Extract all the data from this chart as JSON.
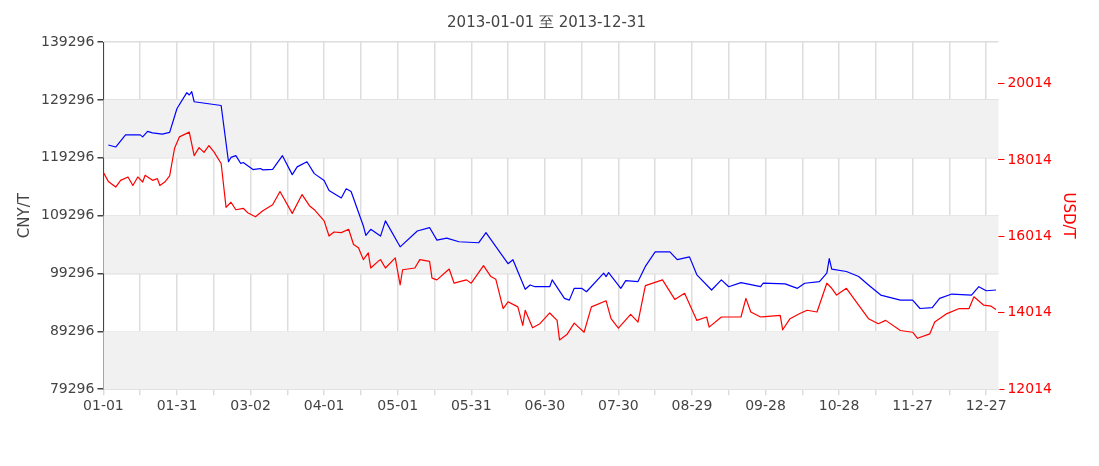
{
  "chart_data": {
    "type": "line",
    "title": "2013-01-01 至 2013-12-31",
    "ylabel": "CNY/T",
    "y2label": "USD/T",
    "xlim": [
      "2013-01-01",
      "2014-01-01"
    ],
    "xticks": [
      {
        "value": "2013-01-01",
        "label": "01-01"
      },
      {
        "value": "2013-01-16",
        "label": null
      },
      {
        "value": "2013-01-31",
        "label": "01-31"
      },
      {
        "value": "2013-02-15",
        "label": null
      },
      {
        "value": "2013-03-02",
        "label": "03-02"
      },
      {
        "value": "2013-03-17",
        "label": null
      },
      {
        "value": "2013-04-01",
        "label": "04-01"
      },
      {
        "value": "2013-04-16",
        "label": null
      },
      {
        "value": "2013-05-01",
        "label": "05-01"
      },
      {
        "value": "2013-05-16",
        "label": null
      },
      {
        "value": "2013-05-31",
        "label": "05-31"
      },
      {
        "value": "2013-06-15",
        "label": null
      },
      {
        "value": "2013-06-30",
        "label": "06-30"
      },
      {
        "value": "2013-07-15",
        "label": null
      },
      {
        "value": "2013-07-30",
        "label": "07-30"
      },
      {
        "value": "2013-08-14",
        "label": null
      },
      {
        "value": "2013-08-29",
        "label": "08-29"
      },
      {
        "value": "2013-09-13",
        "label": null
      },
      {
        "value": "2013-09-28",
        "label": "09-28"
      },
      {
        "value": "2013-10-13",
        "label": null
      },
      {
        "value": "2013-10-28",
        "label": "10-28"
      },
      {
        "value": "2013-11-12",
        "label": null
      },
      {
        "value": "2013-11-27",
        "label": "11-27"
      },
      {
        "value": "2013-12-12",
        "label": null
      },
      {
        "value": "2013-12-27",
        "label": "12-27"
      }
    ],
    "ylim": [
      79296,
      139296
    ],
    "yticks": [
      79296,
      89296,
      99296,
      109296,
      119296,
      129296,
      139296
    ],
    "y2lim": [
      12014,
      21100
    ],
    "y2ticks": [
      12014,
      14014,
      16014,
      18014,
      20014
    ],
    "grid": true,
    "legend": false,
    "marker": "none",
    "line_style": "solid",
    "series": [
      {
        "color": "#0000ff",
        "x": [
          "2013-01-03",
          "2013-01-06",
          "2013-01-10",
          "2013-01-16",
          "2013-01-17",
          "2013-01-19",
          "2013-01-21",
          "2013-01-25",
          "2013-01-28",
          "2013-01-31",
          "2013-02-04",
          "2013-02-05",
          "2013-02-06",
          "2013-02-07",
          "2013-02-18",
          "2013-02-21",
          "2013-02-22",
          "2013-02-24",
          "2013-02-26",
          "2013-02-27",
          "2013-03-03",
          "2013-03-06",
          "2013-03-07",
          "2013-03-11",
          "2013-03-15",
          "2013-03-19",
          "2013-03-21",
          "2013-03-25",
          "2013-03-28",
          "2013-04-01",
          "2013-04-03",
          "2013-04-08",
          "2013-04-10",
          "2013-04-12",
          "2013-04-17",
          "2013-04-18",
          "2013-04-20",
          "2013-04-24",
          "2013-04-26",
          "2013-05-02",
          "2013-05-09",
          "2013-05-14",
          "2013-05-17",
          "2013-05-21",
          "2013-05-26",
          "2013-06-03",
          "2013-06-06",
          "2013-06-15",
          "2013-06-17",
          "2013-06-22",
          "2013-06-24",
          "2013-06-26",
          "2013-07-02",
          "2013-07-03",
          "2013-07-08",
          "2013-07-10",
          "2013-07-12",
          "2013-07-15",
          "2013-07-17",
          "2013-07-24",
          "2013-07-25",
          "2013-07-26",
          "2013-07-31",
          "2013-08-02",
          "2013-08-07",
          "2013-08-10",
          "2013-08-14",
          "2013-08-20",
          "2013-08-23",
          "2013-08-28",
          "2013-08-31",
          "2013-09-06",
          "2013-09-10",
          "2013-09-13",
          "2013-09-18",
          "2013-09-26",
          "2013-09-27",
          "2013-10-06",
          "2013-10-11",
          "2013-10-14",
          "2013-10-20",
          "2013-10-23",
          "2013-10-24",
          "2013-10-25",
          "2013-10-31",
          "2013-11-05",
          "2013-11-09",
          "2013-11-14",
          "2013-11-22",
          "2013-11-27",
          "2013-11-30",
          "2013-12-05",
          "2013-12-08",
          "2013-12-13",
          "2013-12-21",
          "2013-12-24",
          "2013-12-27",
          "2013-12-31"
        ],
        "values": [
          121500,
          121150,
          123250,
          123250,
          122900,
          123840,
          123600,
          123370,
          123670,
          127800,
          130540,
          130140,
          130720,
          128970,
          128320,
          118600,
          119350,
          119650,
          118300,
          118470,
          117250,
          117420,
          117200,
          117300,
          119650,
          116380,
          117720,
          118600,
          116550,
          115380,
          113630,
          112350,
          113930,
          113450,
          107510,
          105880,
          106930,
          105760,
          108380,
          103900,
          106630,
          107230,
          105060,
          105410,
          104780,
          104600,
          106350,
          100980,
          101680,
          96560,
          97310,
          97010,
          97010,
          98190,
          94990,
          94690,
          96730,
          96730,
          96140,
          99360,
          98760,
          99460,
          96730,
          98060,
          97890,
          100510,
          103030,
          103030,
          101680,
          102160,
          99060,
          96440,
          98190,
          97010,
          97710,
          97010,
          97610,
          97490,
          96730,
          97610,
          97890,
          99360,
          101860,
          100060,
          99640,
          98760,
          97310,
          95560,
          94690,
          94690,
          93240,
          93410,
          94990,
          95740,
          95560,
          97010,
          96310,
          96440
        ]
      },
      {
        "color": "#ff0000",
        "axis": "y2",
        "x": [
          "2013-01-01",
          "2013-01-03",
          "2013-01-06",
          "2013-01-08",
          "2013-01-11",
          "2013-01-13",
          "2013-01-15",
          "2013-01-17",
          "2013-01-18",
          "2013-01-21",
          "2013-01-23",
          "2013-01-24",
          "2013-01-26",
          "2013-01-28",
          "2013-01-30",
          "2013-02-01",
          "2013-02-05",
          "2013-02-07",
          "2013-02-09",
          "2013-02-11",
          "2013-02-13",
          "2013-02-15",
          "2013-02-18",
          "2013-02-20",
          "2013-02-22",
          "2013-02-24",
          "2013-02-27",
          "2013-03-01",
          "2013-03-04",
          "2013-03-07",
          "2013-03-11",
          "2013-03-14",
          "2013-03-19",
          "2013-03-23",
          "2013-03-26",
          "2013-03-28",
          "2013-04-01",
          "2013-04-03",
          "2013-04-05",
          "2013-04-08",
          "2013-04-11",
          "2013-04-13",
          "2013-04-15",
          "2013-04-17",
          "2013-04-19",
          "2013-04-20",
          "2013-04-23",
          "2013-04-24",
          "2013-04-26",
          "2013-04-30",
          "2013-05-02",
          "2013-05-03",
          "2013-05-08",
          "2013-05-10",
          "2013-05-14",
          "2013-05-15",
          "2013-05-17",
          "2013-05-22",
          "2013-05-24",
          "2013-05-29",
          "2013-05-31",
          "2013-06-05",
          "2013-06-08",
          "2013-06-10",
          "2013-06-13",
          "2013-06-15",
          "2013-06-19",
          "2013-06-21",
          "2013-06-22",
          "2013-06-25",
          "2013-06-28",
          "2013-07-02",
          "2013-07-05",
          "2013-07-06",
          "2013-07-09",
          "2013-07-12",
          "2013-07-16",
          "2013-07-19",
          "2013-07-25",
          "2013-07-27",
          "2013-07-30",
          "2013-08-04",
          "2013-08-07",
          "2013-08-10",
          "2013-08-17",
          "2013-08-22",
          "2013-08-26",
          "2013-08-31",
          "2013-09-04",
          "2013-09-05",
          "2013-09-10",
          "2013-09-18",
          "2013-09-20",
          "2013-09-22",
          "2013-09-26",
          "2013-10-04",
          "2013-10-05",
          "2013-10-08",
          "2013-10-12",
          "2013-10-15",
          "2013-10-19",
          "2013-10-23",
          "2013-10-25",
          "2013-10-27",
          "2013-10-31",
          "2013-11-04",
          "2013-11-09",
          "2013-11-13",
          "2013-11-16",
          "2013-11-22",
          "2013-11-27",
          "2013-11-29",
          "2013-12-04",
          "2013-12-06",
          "2013-12-11",
          "2013-12-16",
          "2013-12-20",
          "2013-12-22",
          "2013-12-26",
          "2013-12-29",
          "2013-12-31"
        ],
        "values": [
          17683,
          17452,
          17304,
          17479,
          17569,
          17346,
          17569,
          17436,
          17611,
          17479,
          17524,
          17346,
          17436,
          17595,
          18319,
          18618,
          18742,
          18125,
          18337,
          18213,
          18390,
          18231,
          17921,
          16774,
          16907,
          16711,
          16748,
          16623,
          16525,
          16684,
          16843,
          17187,
          16615,
          17108,
          16817,
          16711,
          16419,
          16022,
          16128,
          16112,
          16199,
          15802,
          15715,
          15405,
          15582,
          15185,
          15360,
          15405,
          15185,
          15450,
          14742,
          15140,
          15185,
          15405,
          15360,
          14920,
          14875,
          15158,
          14788,
          14875,
          14788,
          15246,
          14962,
          14893,
          14125,
          14300,
          14168,
          13683,
          14080,
          13622,
          13728,
          14009,
          13815,
          13304,
          13444,
          13744,
          13505,
          14168,
          14327,
          13860,
          13611,
          13974,
          13770,
          14724,
          14875,
          14364,
          14523,
          13815,
          13903,
          13638,
          13903,
          13903,
          14390,
          14035,
          13903,
          13948,
          13569,
          13860,
          13993,
          14080,
          14035,
          14788,
          14655,
          14478,
          14655,
          14300,
          13860,
          13728,
          13815,
          13550,
          13505,
          13346,
          13463,
          13770,
          13993,
          14125,
          14125,
          14433,
          14213,
          14186,
          14099
        ]
      }
    ]
  }
}
